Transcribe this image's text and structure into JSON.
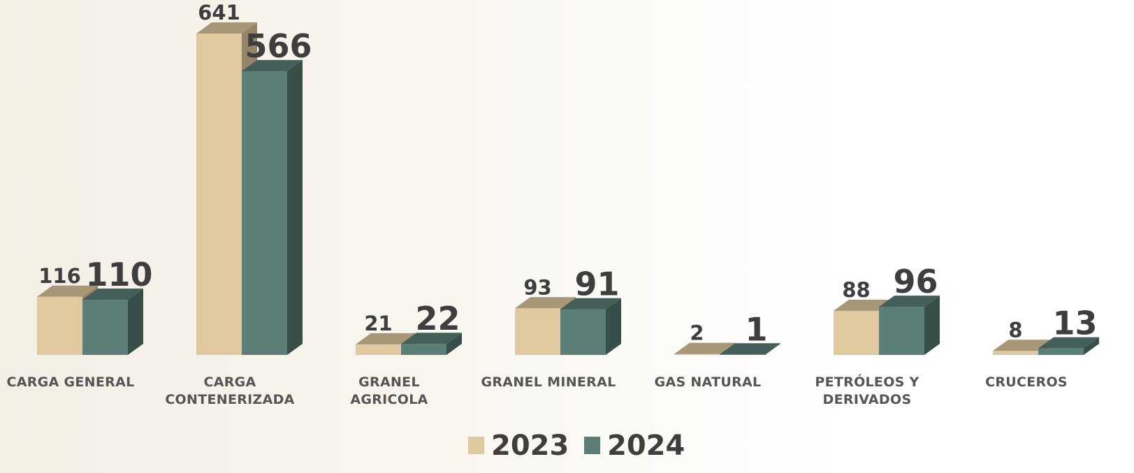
{
  "chart_data": {
    "type": "bar3d",
    "categories": [
      "CARGA GENERAL",
      "CARGA\nCONTENERIZADA",
      "GRANEL\nAGRICOLA",
      "GRANEL MINERAL",
      "GAS NATURAL",
      "PETRÓLEOS Y\nDERIVADOS",
      "CRUCEROS"
    ],
    "series": [
      {
        "name": "2023",
        "color": "#e0c99f",
        "values": [
          116,
          641,
          21,
          93,
          2,
          88,
          8
        ]
      },
      {
        "name": "2024",
        "color": "#5b7f76",
        "values": [
          110,
          566,
          22,
          91,
          1,
          96,
          13
        ]
      }
    ],
    "legend": "bottom"
  }
}
